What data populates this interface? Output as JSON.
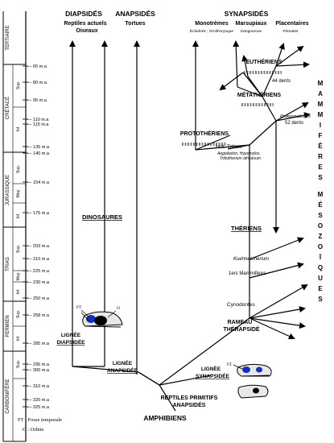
{
  "periods": [
    {
      "id": "tertiaire",
      "label": "TERTIAIRE"
    },
    {
      "id": "cretace",
      "label": "CRÉTACÉ"
    },
    {
      "id": "jurassique",
      "label": "JURASSIQUE"
    },
    {
      "id": "trias",
      "label": "TRIAS"
    },
    {
      "id": "permien",
      "label": "PERMIEN"
    },
    {
      "id": "carbonifere",
      "label": "CARBONIFÈRE"
    }
  ],
  "epochs": {
    "cretace_sup": "Sup.",
    "cretace_inf": "Inf.",
    "jur_sup": "Sup.",
    "jur_moy": "Moy.",
    "jur_inf": "Inf.",
    "trias_sup": "Sup.",
    "trias_moy": "Moy.",
    "trias_inf": "Inf.",
    "perm_sup": "Sup.",
    "perm_inf": "Inf.",
    "carb_sup": "Sup."
  },
  "ages": [
    "65 m.a",
    "80 m.a",
    "95 m.a",
    "110 m.a",
    "115 m.a",
    "135 m.a",
    "140 m.a",
    "154 m.a",
    "175 m.a",
    "203 m.a",
    "210 m.a",
    "225 m.a",
    "230 m.a",
    "250 m.a",
    "258 m.a",
    "285 m.a",
    "295 m.a",
    "300 m.a",
    "310 m.a",
    "320 m.a",
    "325 m.a"
  ],
  "top_groups": {
    "diapsides": "DIAPSIDÉS",
    "diapsides_sub1": "Reptiles actuels",
    "diapsides_sub2": "Oiseaux",
    "anapsides": "ANAPSIDÉS",
    "anapsides_sub": "Tortues",
    "synapsides": "SYNAPSIDÉS",
    "monotremes": "Monotrèmes",
    "monotremes_sub": "Échidnés ; Ornithorynque",
    "marsupiaux": "Marsupiaux",
    "marsupiaux_sub": "Kangourous",
    "placentaires": "Placentaires",
    "placentaires_sub": "Primates"
  },
  "labels": {
    "eutheriens": "EUTHÉRIENS",
    "dents44": "44 dents",
    "metatheriens": "MÉTATHÉRIENS",
    "prokennalestes": "Prokennalestes",
    "dents52": "52 dents",
    "prototheriens": "PROTOTHÉRIENS",
    "mol_tribos": "Mol. Tribos.",
    "aegialodon": "Aegialodon, Hypomylos,",
    "tribotherium": "Tribotherium africanum",
    "dinosaures": "DINOSAURES",
    "theriens": "THÉRIENS",
    "kuehneotherium": "Kuehneotherium",
    "mammiferes_1ers": "1ers Mammifères",
    "cynodontes": "Cynodontes",
    "rameau_1": "RAMEAU",
    "rameau_2": "THÉRAPSIDÉ",
    "lignee_diapside_1": "LIGNÉE",
    "lignee_diapside_2": "DIAPSIDÉE",
    "lignee_anapside_1": "LIGNÉE",
    "lignee_anapside_2": "ANAPSIDÉE",
    "lignee_synapside_1": "LIGNÉE",
    "lignee_synapside_2": "SYNAPSIDÉE",
    "reptiles_primitifs_1": "REPTILES PRIMITIFS",
    "reptiles_primitifs_2": "ANAPSIDÉS",
    "amphibiens": "AMPHIBIENS",
    "skull_ft": "FT",
    "skull_o": "O",
    "skull2_ft": "FT"
  },
  "side_title_1": [
    "M",
    "A",
    "M",
    "M",
    "I",
    "F",
    "È",
    "R",
    "E",
    "S"
  ],
  "side_title_2": [
    "M",
    "É",
    "S",
    "O",
    "Z",
    "O",
    "Ï",
    "Q",
    "U",
    "E",
    "S"
  ],
  "legend": {
    "ft": "FT : Fosse temporale",
    "o": "O : Orbite"
  }
}
